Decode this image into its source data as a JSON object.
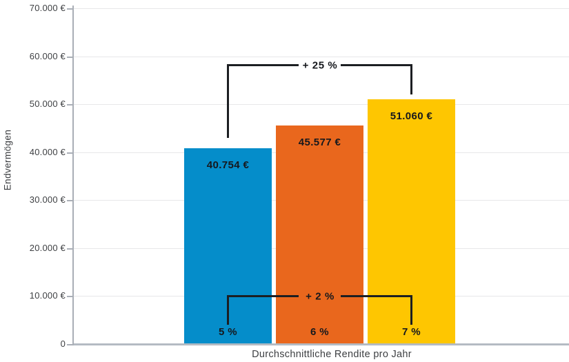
{
  "chart_data": {
    "type": "bar",
    "title": "",
    "xlabel": "Durchschnittliche Rendite pro Jahr",
    "ylabel": "Endvermögen",
    "categories": [
      "5 %",
      "6 %",
      "7 %"
    ],
    "values": [
      40754,
      45577,
      51060
    ],
    "value_labels": [
      "40.754 €",
      "45.577 €",
      "51.060 €"
    ],
    "bar_colors": [
      "#058dca",
      "#e9671d",
      "#fec601"
    ],
    "ylim": [
      0,
      70000
    ],
    "ytick_interval": 10000,
    "ytick_labels": [
      "0",
      "10.000 €",
      "20.000 €",
      "30.000 €",
      "40.000 €",
      "50.000 €",
      "60.000 €",
      "70.000 €"
    ],
    "grid": true,
    "legend": false,
    "annotations": [
      {
        "label": "+ 25 %",
        "from_category": "5 %",
        "to_category": "7 %",
        "position": "top"
      },
      {
        "label": "+ 2 %",
        "from_category": "5 %",
        "to_category": "7 %",
        "position": "bottom"
      }
    ],
    "colors": {
      "axis": "#a9aeb6",
      "grid": "#e7e7e9",
      "text": "#3d3f42",
      "annotation": "#1c1e22"
    }
  }
}
